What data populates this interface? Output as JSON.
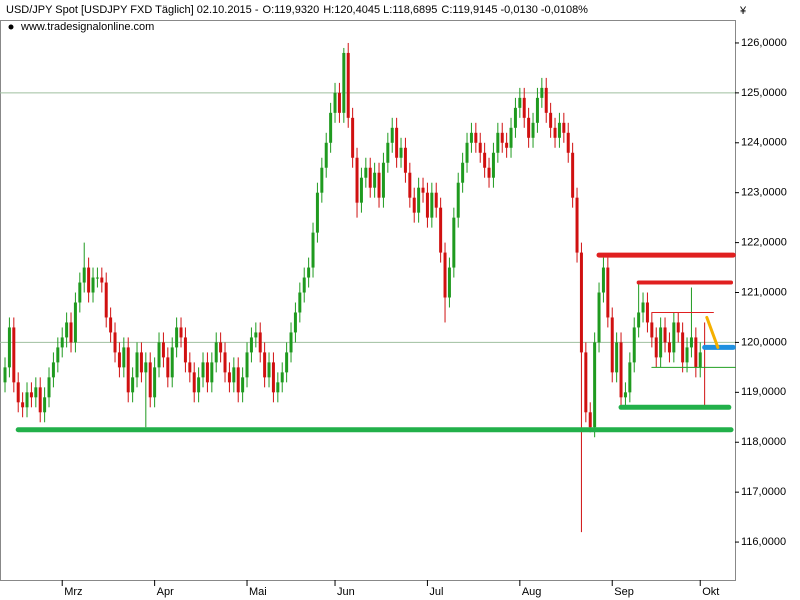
{
  "chart_data": {
    "type": "candlestick",
    "title_parts": [
      {
        "text": "USD/JPY Spot [USDJPY FXD  Täglich] 02.10.2015 -",
        "color": "#000000"
      },
      {
        "text": "O:119,9320",
        "color": "#008000"
      },
      {
        "text": "H:120,4045 L:118,6895",
        "color": "#000000"
      },
      {
        "text": "C:119,9145 -0,0130 -0,0108%",
        "color": "#e00000"
      }
    ],
    "subtitle": "www.tradesignalonline.com",
    "currency": "¥",
    "up_color": "#1f9a1f",
    "down_color": "#d01010",
    "xlim": [
      -1.14,
      165.9
    ],
    "ylim": [
      115.24,
      126.46
    ],
    "xticks": [
      {
        "value": 13,
        "label": "Mrz"
      },
      {
        "value": 34,
        "label": "Apr"
      },
      {
        "value": 55,
        "label": "Mai"
      },
      {
        "value": 75,
        "label": "Jun"
      },
      {
        "value": 96,
        "label": "Jul"
      },
      {
        "value": 117,
        "label": "Aug"
      },
      {
        "value": 138,
        "label": "Sep"
      },
      {
        "value": 158,
        "label": "Okt"
      }
    ],
    "yticks": [
      {
        "value": 116,
        "label": "116,0000"
      },
      {
        "value": 117,
        "label": "117,0000"
      },
      {
        "value": 118,
        "label": "118,0000"
      },
      {
        "value": 119,
        "label": "119,0000"
      },
      {
        "value": 120,
        "label": "120,0000"
      },
      {
        "value": 121,
        "label": "121,0000"
      },
      {
        "value": 122,
        "label": "122,0000"
      },
      {
        "value": 123,
        "label": "123,0000"
      },
      {
        "value": 124,
        "label": "124,0000"
      },
      {
        "value": 125,
        "label": "125,0000"
      },
      {
        "value": 126,
        "label": "126,0000"
      }
    ],
    "hlines": [
      125,
      120
    ],
    "levels": [
      {
        "value": 118.25,
        "from": 3,
        "to": 165,
        "color": "#22b04a",
        "width": 5
      },
      {
        "value": 121.75,
        "from": 135,
        "to": 165.5,
        "color": "#e02020",
        "width": 5
      },
      {
        "value": 121.2,
        "from": 144,
        "to": 165,
        "color": "#e02020",
        "width": 4
      },
      {
        "value": 118.7,
        "from": 140,
        "to": 164.5,
        "color": "#22b04a",
        "width": 5
      },
      {
        "value": 119.9,
        "from": 159,
        "to": 165.5,
        "color": "#1e90e0",
        "width": 5
      },
      {
        "value": 120.6,
        "from": 147,
        "to": 161,
        "color": "#e02020",
        "width": 1
      },
      {
        "value": 119.5,
        "from": 147,
        "to": 166,
        "color": "#22a022",
        "width": 1
      }
    ],
    "trend": {
      "x": [
        159.5,
        162
      ],
      "y": [
        120.5,
        119.9
      ],
      "color": "#f5b000"
    },
    "ohlc": [
      [
        119.2,
        119.7,
        119.0,
        119.5
      ],
      [
        119.5,
        120.5,
        119.3,
        120.3
      ],
      [
        120.3,
        120.5,
        119.0,
        119.2
      ],
      [
        119.2,
        119.4,
        118.6,
        118.8
      ],
      [
        118.8,
        119.0,
        118.5,
        118.7
      ],
      [
        118.7,
        119.2,
        118.5,
        119.0
      ],
      [
        119.0,
        119.2,
        118.7,
        118.9
      ],
      [
        118.9,
        119.3,
        118.7,
        119.1
      ],
      [
        119.1,
        119.3,
        118.4,
        118.6
      ],
      [
        118.6,
        119.1,
        118.4,
        118.9
      ],
      [
        118.9,
        119.5,
        118.7,
        119.3
      ],
      [
        119.3,
        119.8,
        119.1,
        119.6
      ],
      [
        119.6,
        120.1,
        119.4,
        119.9
      ],
      [
        119.9,
        120.3,
        119.7,
        120.1
      ],
      [
        120.1,
        120.6,
        119.9,
        120.4
      ],
      [
        120.4,
        120.6,
        119.8,
        120.0
      ],
      [
        120.0,
        121.0,
        119.8,
        120.8
      ],
      [
        120.8,
        121.4,
        120.6,
        121.2
      ],
      [
        121.2,
        122.0,
        121.0,
        121.5
      ],
      [
        121.5,
        121.7,
        120.8,
        121.0
      ],
      [
        121.0,
        121.5,
        120.8,
        121.3
      ],
      [
        121.3,
        121.5,
        121.1,
        121.3
      ],
      [
        121.3,
        121.5,
        121.0,
        121.2
      ],
      [
        121.2,
        121.4,
        120.3,
        120.5
      ],
      [
        120.5,
        120.7,
        120.0,
        120.2
      ],
      [
        120.2,
        120.4,
        119.6,
        119.8
      ],
      [
        119.8,
        120.0,
        119.3,
        119.5
      ],
      [
        119.5,
        120.1,
        119.3,
        119.9
      ],
      [
        119.9,
        120.1,
        118.8,
        119.0
      ],
      [
        119.0,
        119.5,
        118.8,
        119.3
      ],
      [
        119.3,
        120.0,
        119.1,
        119.8
      ],
      [
        119.8,
        120.0,
        119.2,
        119.4
      ],
      [
        119.4,
        119.8,
        118.3,
        119.6
      ],
      [
        119.6,
        119.8,
        118.7,
        118.9
      ],
      [
        118.9,
        119.7,
        118.7,
        119.5
      ],
      [
        119.5,
        120.2,
        119.3,
        120.0
      ],
      [
        120.0,
        120.2,
        119.5,
        119.7
      ],
      [
        119.7,
        119.9,
        119.1,
        119.3
      ],
      [
        119.3,
        120.1,
        119.1,
        119.9
      ],
      [
        119.9,
        120.5,
        119.7,
        120.3
      ],
      [
        120.3,
        120.5,
        119.9,
        120.1
      ],
      [
        120.1,
        120.3,
        119.4,
        119.6
      ],
      [
        119.6,
        119.8,
        119.2,
        119.4
      ],
      [
        119.4,
        119.6,
        118.8,
        119.0
      ],
      [
        119.0,
        119.5,
        118.8,
        119.3
      ],
      [
        119.3,
        119.8,
        119.1,
        119.6
      ],
      [
        119.6,
        119.8,
        119.0,
        119.2
      ],
      [
        119.2,
        119.8,
        119.0,
        119.6
      ],
      [
        119.6,
        120.2,
        119.4,
        120.0
      ],
      [
        120.0,
        120.2,
        119.6,
        119.8
      ],
      [
        119.8,
        120.0,
        119.2,
        119.4
      ],
      [
        119.4,
        119.6,
        119.0,
        119.2
      ],
      [
        119.2,
        119.7,
        119.0,
        119.5
      ],
      [
        119.5,
        119.7,
        118.8,
        119.0
      ],
      [
        119.0,
        119.5,
        118.8,
        119.3
      ],
      [
        119.3,
        120.0,
        119.1,
        119.8
      ],
      [
        119.8,
        120.3,
        119.6,
        120.1
      ],
      [
        120.1,
        120.4,
        119.9,
        120.2
      ],
      [
        120.2,
        120.4,
        119.6,
        119.8
      ],
      [
        119.8,
        120.0,
        119.1,
        119.3
      ],
      [
        119.3,
        119.8,
        119.1,
        119.6
      ],
      [
        119.6,
        119.8,
        118.8,
        119.0
      ],
      [
        119.0,
        119.4,
        118.8,
        119.2
      ],
      [
        119.2,
        119.6,
        119.0,
        119.4
      ],
      [
        119.4,
        120.0,
        119.2,
        119.8
      ],
      [
        119.8,
        120.4,
        119.6,
        120.2
      ],
      [
        120.2,
        120.8,
        120.0,
        120.6
      ],
      [
        120.6,
        121.2,
        120.4,
        121.0
      ],
      [
        121.0,
        121.5,
        120.8,
        121.3
      ],
      [
        121.3,
        121.7,
        121.1,
        121.5
      ],
      [
        121.5,
        122.4,
        121.3,
        122.2
      ],
      [
        122.2,
        123.2,
        122.0,
        123.0
      ],
      [
        123.0,
        123.7,
        122.8,
        123.5
      ],
      [
        123.5,
        124.2,
        123.3,
        124.0
      ],
      [
        124.0,
        124.8,
        123.8,
        124.6
      ],
      [
        124.6,
        125.2,
        124.4,
        125.0
      ],
      [
        125.0,
        125.2,
        124.4,
        124.6
      ],
      [
        124.6,
        125.9,
        124.4,
        125.8
      ],
      [
        125.8,
        126.0,
        124.3,
        124.5
      ],
      [
        124.5,
        124.7,
        123.5,
        123.7
      ],
      [
        123.7,
        123.9,
        122.5,
        122.8
      ],
      [
        122.8,
        123.5,
        122.6,
        123.3
      ],
      [
        123.3,
        123.7,
        123.1,
        123.5
      ],
      [
        123.5,
        123.7,
        122.9,
        123.1
      ],
      [
        123.1,
        123.6,
        122.9,
        123.4
      ],
      [
        123.4,
        123.6,
        122.7,
        122.9
      ],
      [
        122.9,
        123.8,
        122.7,
        123.6
      ],
      [
        123.6,
        124.2,
        123.4,
        124.0
      ],
      [
        124.0,
        124.5,
        123.8,
        124.3
      ],
      [
        124.3,
        124.5,
        123.5,
        123.7
      ],
      [
        123.7,
        124.1,
        123.5,
        123.9
      ],
      [
        123.9,
        124.1,
        123.2,
        123.4
      ],
      [
        123.4,
        123.6,
        122.7,
        122.9
      ],
      [
        122.9,
        123.1,
        122.4,
        122.6
      ],
      [
        122.6,
        123.3,
        122.4,
        123.1
      ],
      [
        123.1,
        123.3,
        122.8,
        123.0
      ],
      [
        123.0,
        123.2,
        122.3,
        122.5
      ],
      [
        122.5,
        123.2,
        122.3,
        123.0
      ],
      [
        123.0,
        123.2,
        122.5,
        122.7
      ],
      [
        122.7,
        122.9,
        121.6,
        121.8
      ],
      [
        121.8,
        122.0,
        120.4,
        120.9
      ],
      [
        120.9,
        121.7,
        120.7,
        121.5
      ],
      [
        121.5,
        122.7,
        121.3,
        122.5
      ],
      [
        122.5,
        123.4,
        122.3,
        123.2
      ],
      [
        123.2,
        123.8,
        123.0,
        123.6
      ],
      [
        123.6,
        124.2,
        123.4,
        124.0
      ],
      [
        124.0,
        124.4,
        123.8,
        124.2
      ],
      [
        124.2,
        124.4,
        123.8,
        124.0
      ],
      [
        124.0,
        124.2,
        123.6,
        123.8
      ],
      [
        123.8,
        124.0,
        123.3,
        123.5
      ],
      [
        123.5,
        123.7,
        123.1,
        123.3
      ],
      [
        123.3,
        124.0,
        123.1,
        123.8
      ],
      [
        123.8,
        124.4,
        123.6,
        124.2
      ],
      [
        124.2,
        124.4,
        123.8,
        124.0
      ],
      [
        124.0,
        124.2,
        123.7,
        123.9
      ],
      [
        123.9,
        124.5,
        123.7,
        124.3
      ],
      [
        124.3,
        124.9,
        124.1,
        124.7
      ],
      [
        124.7,
        125.1,
        124.5,
        124.9
      ],
      [
        124.9,
        125.1,
        124.3,
        124.5
      ],
      [
        124.5,
        124.7,
        123.9,
        124.1
      ],
      [
        124.1,
        124.6,
        123.9,
        124.4
      ],
      [
        124.4,
        125.1,
        124.2,
        124.9
      ],
      [
        124.9,
        125.3,
        124.7,
        125.1
      ],
      [
        125.1,
        125.3,
        124.4,
        124.6
      ],
      [
        124.6,
        124.8,
        124.1,
        124.3
      ],
      [
        124.3,
        124.5,
        123.9,
        124.1
      ],
      [
        124.1,
        124.6,
        123.9,
        124.4
      ],
      [
        124.4,
        124.6,
        124.0,
        124.2
      ],
      [
        124.2,
        124.4,
        123.6,
        123.8
      ],
      [
        123.8,
        124.0,
        122.7,
        122.9
      ],
      [
        122.9,
        123.1,
        121.6,
        121.8
      ],
      [
        121.8,
        122.0,
        116.2,
        119.8
      ],
      [
        119.8,
        120.0,
        118.4,
        118.6
      ],
      [
        118.6,
        118.8,
        118.2,
        118.3
      ],
      [
        118.3,
        120.2,
        118.1,
        120.0
      ],
      [
        120.0,
        121.2,
        119.8,
        121.0
      ],
      [
        121.0,
        121.7,
        120.8,
        121.5
      ],
      [
        121.5,
        121.7,
        120.3,
        120.5
      ],
      [
        120.5,
        120.7,
        119.2,
        119.4
      ],
      [
        119.4,
        120.2,
        119.2,
        120.0
      ],
      [
        120.0,
        120.2,
        118.7,
        118.9
      ],
      [
        118.9,
        119.2,
        118.7,
        119.0
      ],
      [
        119.0,
        119.8,
        118.8,
        119.6
      ],
      [
        119.6,
        120.5,
        119.4,
        120.3
      ],
      [
        120.3,
        121.2,
        120.1,
        120.6
      ],
      [
        120.6,
        121.0,
        120.4,
        120.8
      ],
      [
        120.8,
        121.0,
        120.2,
        120.4
      ],
      [
        120.4,
        120.6,
        119.9,
        120.1
      ],
      [
        120.1,
        120.3,
        119.5,
        119.7
      ],
      [
        119.7,
        120.5,
        119.5,
        120.3
      ],
      [
        120.3,
        120.5,
        119.8,
        120.0
      ],
      [
        120.0,
        120.2,
        119.6,
        119.8
      ],
      [
        119.8,
        120.6,
        119.6,
        120.4
      ],
      [
        120.4,
        120.6,
        120.0,
        120.2
      ],
      [
        120.2,
        120.4,
        119.4,
        119.6
      ],
      [
        119.6,
        120.1,
        119.4,
        119.9
      ],
      [
        119.9,
        121.1,
        119.7,
        120.1
      ],
      [
        120.1,
        120.3,
        119.3,
        119.5
      ],
      [
        119.5,
        120.0,
        119.3,
        119.8
      ],
      [
        119.93,
        120.4,
        118.69,
        119.91
      ]
    ]
  }
}
